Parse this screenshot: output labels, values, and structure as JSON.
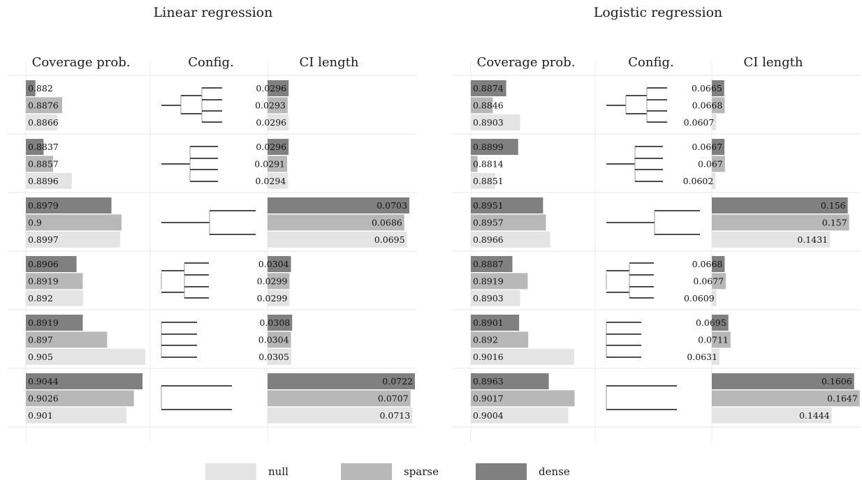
{
  "colors": {
    "null": "#e4e4e4",
    "sparse": "#b8b8b8",
    "dense": "#808080"
  },
  "chart_data": {
    "type": "bar",
    "orientation": "horizontal",
    "legend": {
      "placement": "bottom",
      "items": [
        {
          "key": "null",
          "label": "null"
        },
        {
          "key": "sparse",
          "label": "sparse"
        },
        {
          "key": "dense",
          "label": "dense"
        }
      ]
    },
    "panels": [
      {
        "title": "Linear regression",
        "coverage_header": "Coverage prob.",
        "config_header": "Config.",
        "length_header": "CI length",
        "groups": [
          {
            "config": "nested-4",
            "rows": [
              {
                "series": "dense",
                "coverage": "0.882",
                "ci_length": "0.0296"
              },
              {
                "series": "sparse",
                "coverage": "0.8876",
                "ci_length": "0.0293"
              },
              {
                "series": "null",
                "coverage": "0.8866",
                "ci_length": "0.0296"
              }
            ]
          },
          {
            "config": "star-4",
            "rows": [
              {
                "series": "dense",
                "coverage": "0.8837",
                "ci_length": "0.0296"
              },
              {
                "series": "sparse",
                "coverage": "0.8857",
                "ci_length": "0.0291"
              },
              {
                "series": "null",
                "coverage": "0.8896",
                "ci_length": "0.0294"
              }
            ]
          },
          {
            "config": "split-2",
            "rows": [
              {
                "series": "dense",
                "coverage": "0.8979",
                "ci_length": "0.0703"
              },
              {
                "series": "sparse",
                "coverage": "0.9",
                "ci_length": "0.0686"
              },
              {
                "series": "null",
                "coverage": "0.8997",
                "ci_length": "0.0695"
              }
            ]
          },
          {
            "config": "nested-4-short",
            "rows": [
              {
                "series": "dense",
                "coverage": "0.8906",
                "ci_length": "0.0304"
              },
              {
                "series": "sparse",
                "coverage": "0.8919",
                "ci_length": "0.0299"
              },
              {
                "series": "null",
                "coverage": "0.892",
                "ci_length": "0.0299"
              }
            ]
          },
          {
            "config": "bracket-4",
            "rows": [
              {
                "series": "dense",
                "coverage": "0.8919",
                "ci_length": "0.0308"
              },
              {
                "series": "sparse",
                "coverage": "0.897",
                "ci_length": "0.0304"
              },
              {
                "series": "null",
                "coverage": "0.905",
                "ci_length": "0.0305"
              }
            ]
          },
          {
            "config": "bracket-2",
            "rows": [
              {
                "series": "dense",
                "coverage": "0.9044",
                "ci_length": "0.0722"
              },
              {
                "series": "sparse",
                "coverage": "0.9026",
                "ci_length": "0.0707"
              },
              {
                "series": "null",
                "coverage": "0.901",
                "ci_length": "0.0713"
              }
            ]
          }
        ]
      },
      {
        "title": "Logistic regression",
        "coverage_header": "Coverage prob.",
        "config_header": "Config.",
        "length_header": "CI length",
        "groups": [
          {
            "config": "nested-4",
            "rows": [
              {
                "series": "dense",
                "coverage": "0.8874",
                "ci_length": "0.0665"
              },
              {
                "series": "sparse",
                "coverage": "0.8846",
                "ci_length": "0.0668"
              },
              {
                "series": "null",
                "coverage": "0.8903",
                "ci_length": "0.0607"
              }
            ]
          },
          {
            "config": "star-4",
            "rows": [
              {
                "series": "dense",
                "coverage": "0.8899",
                "ci_length": "0.0667"
              },
              {
                "series": "sparse",
                "coverage": "0.8814",
                "ci_length": "0.067"
              },
              {
                "series": "null",
                "coverage": "0.8851",
                "ci_length": "0.0602"
              }
            ]
          },
          {
            "config": "split-2",
            "rows": [
              {
                "series": "dense",
                "coverage": "0.8951",
                "ci_length": "0.156"
              },
              {
                "series": "sparse",
                "coverage": "0.8957",
                "ci_length": "0.157"
              },
              {
                "series": "null",
                "coverage": "0.8966",
                "ci_length": "0.1431"
              }
            ]
          },
          {
            "config": "nested-4-short",
            "rows": [
              {
                "series": "dense",
                "coverage": "0.8887",
                "ci_length": "0.0668"
              },
              {
                "series": "sparse",
                "coverage": "0.8919",
                "ci_length": "0.0677"
              },
              {
                "series": "null",
                "coverage": "0.8903",
                "ci_length": "0.0609"
              }
            ]
          },
          {
            "config": "bracket-4",
            "rows": [
              {
                "series": "dense",
                "coverage": "0.8901",
                "ci_length": "0.0695"
              },
              {
                "series": "sparse",
                "coverage": "0.892",
                "ci_length": "0.0711"
              },
              {
                "series": "null",
                "coverage": "0.9016",
                "ci_length": "0.0631"
              }
            ]
          },
          {
            "config": "bracket-2",
            "rows": [
              {
                "series": "dense",
                "coverage": "0.8963",
                "ci_length": "0.1606"
              },
              {
                "series": "sparse",
                "coverage": "0.9017",
                "ci_length": "0.1647"
              },
              {
                "series": "null",
                "coverage": "0.9004",
                "ci_length": "0.1444"
              }
            ]
          }
        ]
      }
    ]
  }
}
